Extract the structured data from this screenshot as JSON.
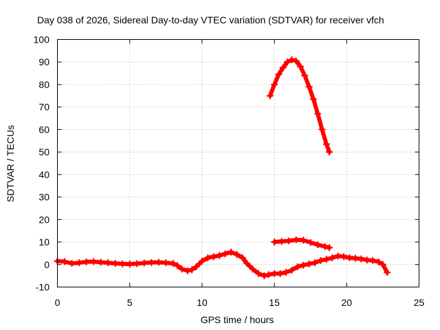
{
  "chart_data": {
    "type": "line",
    "title": "Day 038 of 2026, Sidereal Day-to-day VTEC variation (SDTVAR) for receiver vfch",
    "xlabel": "GPS time / hours",
    "ylabel": "SDTVAR / TECUs",
    "xlim": [
      0,
      25
    ],
    "ylim": [
      -10,
      100
    ],
    "xticks": [
      0,
      5,
      10,
      15,
      20,
      25
    ],
    "yticks": [
      -10,
      0,
      10,
      20,
      30,
      40,
      50,
      60,
      70,
      80,
      90,
      100
    ],
    "grid": true,
    "legend": "none",
    "series_color": "#ff0000",
    "series": [
      {
        "name": "trace-1",
        "x": [
          0,
          0.5,
          1,
          1.5,
          2,
          2.5,
          3,
          3.5,
          4,
          4.5,
          5,
          5.5,
          6,
          6.5,
          7,
          7.5,
          8,
          8.3,
          8.6,
          9.0,
          9.3,
          9.6,
          10.0,
          10.4,
          10.8,
          11.2,
          11.6,
          12.0,
          12.4,
          12.8,
          13.1,
          13.5,
          13.9,
          14.3,
          14.6,
          15.0,
          15.4,
          15.8,
          16.2,
          16.6,
          17.0,
          17.4,
          17.8,
          18.2,
          18.6,
          19.0,
          19.4,
          19.8,
          20.2,
          20.6,
          21.0,
          21.4,
          21.8,
          22.2,
          22.5,
          22.8
        ],
        "y": [
          1.5,
          1.3,
          0.5,
          0.8,
          1.2,
          1.3,
          1.0,
          0.8,
          0.5,
          0.3,
          0.2,
          0.4,
          0.7,
          0.9,
          1.0,
          0.8,
          0.5,
          -0.5,
          -2.0,
          -2.8,
          -2.3,
          -1.0,
          1.5,
          3.0,
          3.5,
          4.0,
          4.8,
          5.5,
          4.5,
          3.0,
          0.5,
          -2.0,
          -4.0,
          -5.0,
          -4.5,
          -4.0,
          -4.0,
          -3.5,
          -2.5,
          -1.0,
          -0.3,
          0.3,
          0.8,
          1.8,
          2.3,
          3.0,
          3.8,
          3.5,
          3.0,
          2.8,
          2.5,
          2.0,
          1.8,
          1.2,
          0.0,
          -3.5
        ]
      },
      {
        "name": "trace-2",
        "x": [
          14.7,
          15.0,
          15.3,
          15.6,
          15.9,
          16.2,
          16.5,
          16.8,
          17.1,
          17.4,
          17.7,
          18.0,
          18.3,
          18.6,
          18.8
        ],
        "y": [
          75,
          80,
          84.5,
          87.5,
          90,
          91,
          90.5,
          88,
          84,
          79,
          73.5,
          67,
          60,
          53.5,
          50
        ]
      },
      {
        "name": "trace-3",
        "x": [
          15.0,
          15.5,
          16.0,
          16.5,
          17.0,
          17.5,
          18.0,
          18.5,
          18.8
        ],
        "y": [
          10,
          10.3,
          10.5,
          11.0,
          10.8,
          9.8,
          8.8,
          8.0,
          7.5
        ]
      }
    ]
  }
}
